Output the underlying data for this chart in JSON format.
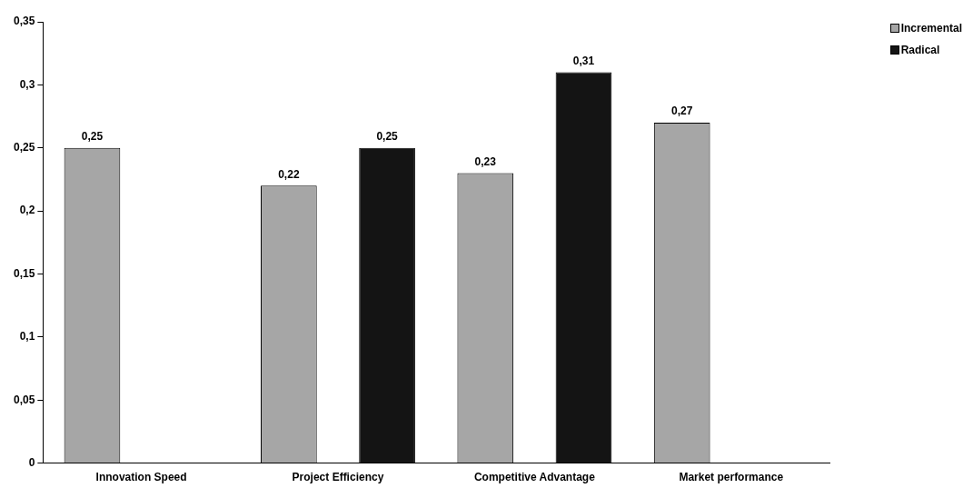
{
  "chart_data": {
    "type": "bar",
    "categories": [
      "Innovation Speed",
      "Project Efficiency",
      "Competitive Advantage",
      "Market performance"
    ],
    "series": [
      {
        "name": "Incremental",
        "color": "#a6a6a6",
        "values": [
          0.25,
          0.22,
          0.23,
          0.27
        ],
        "value_labels": [
          "0,25",
          "0,22",
          "0,23",
          "0,27"
        ]
      },
      {
        "name": "Radical",
        "color": "#141414",
        "values": [
          null,
          0.25,
          0.31,
          null
        ],
        "value_labels": [
          null,
          "0,25",
          "0,31",
          null
        ]
      }
    ],
    "ylim": [
      0,
      0.35
    ],
    "yticks": [
      {
        "value": 0,
        "label": "0"
      },
      {
        "value": 0.05,
        "label": "0,05"
      },
      {
        "value": 0.1,
        "label": "0,1"
      },
      {
        "value": 0.15,
        "label": "0,15"
      },
      {
        "value": 0.2,
        "label": "0,2"
      },
      {
        "value": 0.25,
        "label": "0,25"
      },
      {
        "value": 0.3,
        "label": "0,3"
      },
      {
        "value": 0.35,
        "label": "0,35"
      }
    ],
    "grid": false,
    "legend": "top right"
  }
}
